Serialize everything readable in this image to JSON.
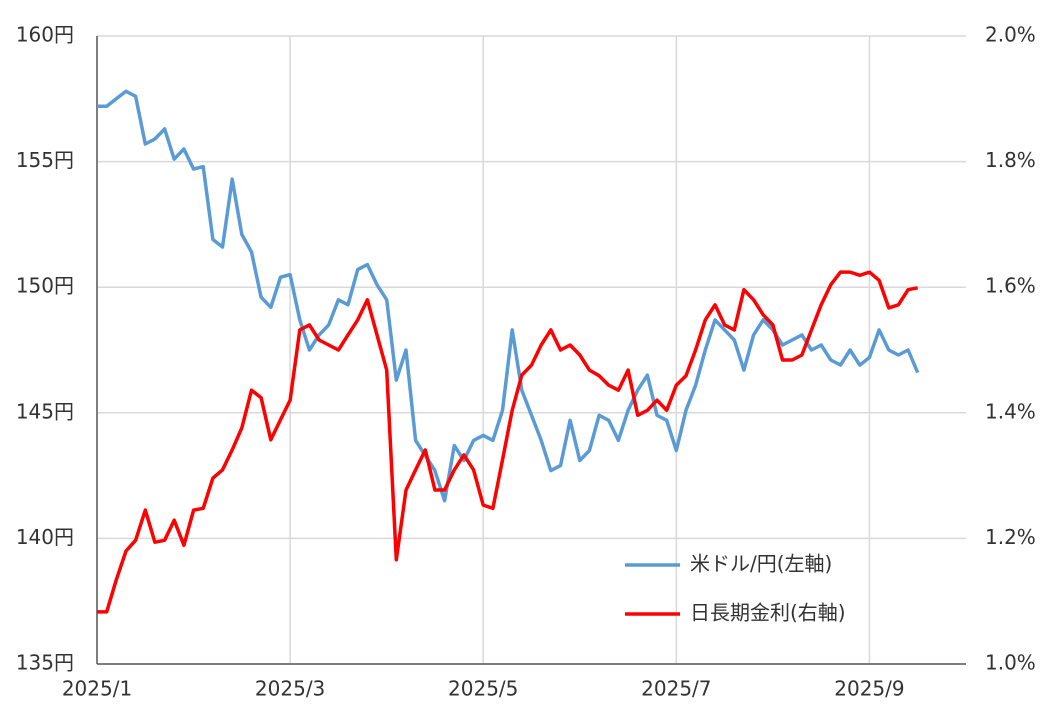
{
  "chart_data": {
    "type": "line",
    "x": [
      1.0,
      1.1,
      1.2,
      1.3,
      1.4,
      1.5,
      1.6,
      1.7,
      1.8,
      1.9,
      2.0,
      2.1,
      2.2,
      2.3,
      2.4,
      2.5,
      2.6,
      2.7,
      2.8,
      2.9,
      3.0,
      3.1,
      3.2,
      3.3,
      3.4,
      3.5,
      3.6,
      3.7,
      3.8,
      3.9,
      4.0,
      4.1,
      4.2,
      4.3,
      4.4,
      4.5,
      4.6,
      4.7,
      4.8,
      4.9,
      5.0,
      5.1,
      5.2,
      5.3,
      5.4,
      5.5,
      5.6,
      5.7,
      5.8,
      5.9,
      6.0,
      6.1,
      6.2,
      6.3,
      6.4,
      6.5,
      6.6,
      6.7,
      6.8,
      6.9,
      7.0,
      7.1,
      7.2,
      7.3,
      7.4,
      7.5,
      7.6,
      7.7,
      7.8,
      7.9,
      8.0,
      8.1,
      8.2,
      8.3,
      8.4,
      8.5,
      8.6,
      8.7,
      8.8,
      8.9,
      9.0,
      9.1,
      9.2,
      9.3,
      9.4,
      9.5
    ],
    "xlim": [
      1,
      10
    ],
    "xticks": [
      {
        "value": 1,
        "label": "2025/1"
      },
      {
        "value": 3,
        "label": "2025/3"
      },
      {
        "value": 5,
        "label": "2025/5"
      },
      {
        "value": 7,
        "label": "2025/7"
      },
      {
        "value": 9,
        "label": "2025/9"
      }
    ],
    "ylim": [
      135,
      160
    ],
    "yticks": [
      {
        "value": 135,
        "label": "135円"
      },
      {
        "value": 140,
        "label": "140円"
      },
      {
        "value": 145,
        "label": "145円"
      },
      {
        "value": 150,
        "label": "150円"
      },
      {
        "value": 155,
        "label": "155円"
      },
      {
        "value": 160,
        "label": "160円"
      }
    ],
    "y2lim": [
      1.0,
      2.0
    ],
    "y2ticks": [
      {
        "value": 1.0,
        "label": "1.0%"
      },
      {
        "value": 1.2,
        "label": "1.2%"
      },
      {
        "value": 1.4,
        "label": "1.4%"
      },
      {
        "value": 1.6,
        "label": "1.6%"
      },
      {
        "value": 1.8,
        "label": "1.8%"
      },
      {
        "value": 2.0,
        "label": "2.0%"
      }
    ],
    "grid": true,
    "legend": "lower-right",
    "series": [
      {
        "name": "米ドル/円(左軸)",
        "color": "#5b9bd5",
        "axis": "y",
        "values": [
          157.2,
          157.2,
          157.5,
          157.8,
          157.6,
          155.7,
          155.9,
          156.3,
          155.1,
          155.5,
          154.7,
          154.8,
          151.9,
          151.6,
          154.3,
          152.1,
          151.4,
          149.6,
          149.2,
          150.4,
          150.5,
          148.7,
          147.5,
          148.1,
          148.5,
          149.5,
          149.3,
          150.7,
          150.9,
          150.1,
          149.5,
          146.3,
          147.5,
          143.9,
          143.3,
          142.7,
          141.5,
          143.7,
          143.1,
          143.9,
          144.1,
          143.9,
          145.1,
          148.3,
          145.9,
          144.9,
          143.9,
          142.7,
          142.9,
          144.7,
          143.1,
          143.5,
          144.9,
          144.7,
          143.9,
          145.1,
          145.9,
          146.5,
          144.9,
          144.7,
          143.5,
          145.1,
          146.1,
          147.5,
          148.7,
          148.3,
          147.9,
          146.7,
          148.1,
          148.7,
          148.3,
          147.7,
          147.9,
          148.1,
          147.5,
          147.7,
          147.1,
          146.9,
          147.5,
          146.9,
          147.2,
          148.3,
          147.5,
          147.3,
          147.5,
          146.6
        ]
      },
      {
        "name": "日長期金利(右軸)",
        "color": "#ff0000",
        "axis": "y2",
        "values": [
          1.083,
          1.083,
          1.134,
          1.18,
          1.197,
          1.245,
          1.194,
          1.197,
          1.229,
          1.189,
          1.245,
          1.248,
          1.296,
          1.309,
          1.341,
          1.376,
          1.436,
          1.424,
          1.357,
          1.389,
          1.42,
          1.532,
          1.54,
          1.516,
          1.508,
          1.5,
          1.524,
          1.548,
          1.58,
          1.524,
          1.468,
          1.166,
          1.277,
          1.309,
          1.341,
          1.277,
          1.277,
          1.309,
          1.333,
          1.309,
          1.253,
          1.248,
          1.325,
          1.404,
          1.46,
          1.476,
          1.508,
          1.532,
          1.5,
          1.508,
          1.492,
          1.468,
          1.459,
          1.444,
          1.436,
          1.468,
          1.396,
          1.404,
          1.42,
          1.404,
          1.444,
          1.459,
          1.5,
          1.548,
          1.572,
          1.54,
          1.532,
          1.596,
          1.58,
          1.556,
          1.54,
          1.484,
          1.484,
          1.492,
          1.532,
          1.572,
          1.604,
          1.624,
          1.624,
          1.619,
          1.624,
          1.611,
          1.567,
          1.572,
          1.596,
          1.599
        ]
      }
    ]
  }
}
